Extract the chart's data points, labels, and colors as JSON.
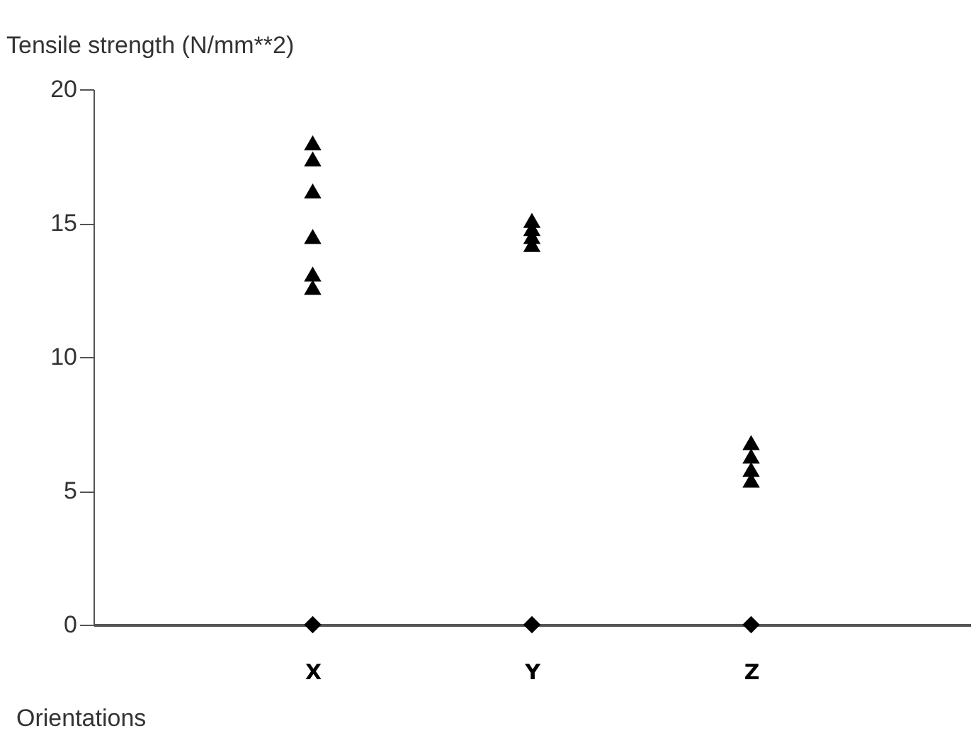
{
  "chart_data": {
    "type": "scatter",
    "ylabel": "Tensile strength (N/mm**2)",
    "xlabel": "Orientations",
    "categories": [
      "X",
      "Y",
      "Z"
    ],
    "ylim": [
      0,
      20
    ],
    "yticks": [
      0,
      5,
      10,
      15,
      20
    ],
    "grid": false,
    "series": [
      {
        "type": "scatter",
        "marker": "triangle",
        "color": "#000000",
        "x": [
          "X",
          "X",
          "X",
          "X",
          "X",
          "X",
          "Y",
          "Y",
          "Y",
          "Y",
          "Z",
          "Z",
          "Z",
          "Z"
        ],
        "values": [
          18.0,
          17.4,
          16.2,
          14.5,
          13.1,
          12.6,
          15.1,
          14.8,
          14.5,
          14.2,
          6.8,
          6.3,
          5.8,
          5.4
        ]
      },
      {
        "type": "scatter",
        "marker": "diamond",
        "color": "#000000",
        "x": [
          "X",
          "Y",
          "Z"
        ],
        "values": [
          0,
          0,
          0
        ]
      }
    ]
  }
}
